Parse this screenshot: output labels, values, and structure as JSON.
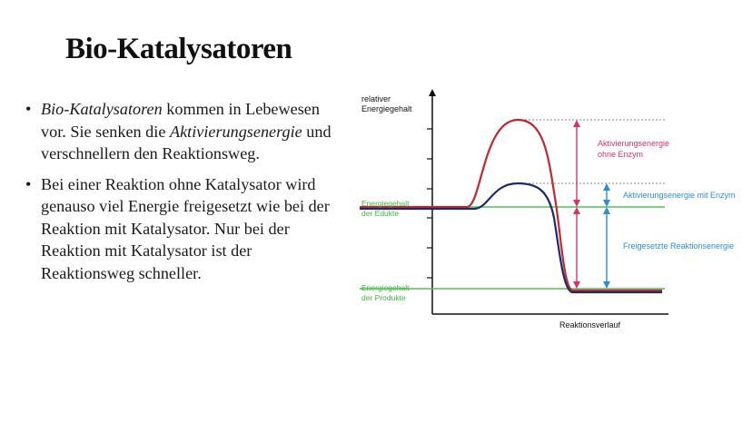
{
  "slide": {
    "title": "Bio-Katalysatoren"
  },
  "bullets": [
    {
      "parts": [
        {
          "text": "Bio-Katalysatoren",
          "italic": true
        },
        {
          "text": " kommen in Lebewesen vor. Sie senken die "
        },
        {
          "text": "Aktivierungsenergie",
          "italic": true
        },
        {
          "text": " und verschnellern den Reaktionsweg."
        }
      ]
    },
    {
      "parts": [
        {
          "text": "Bei einer Reaktion ohne Katalysator wird genauso viel Energie freigesetzt wie bei der Reaktion mit Katalysator. Nur bei der Reaktion mit Katalysator ist der Reaktionsweg schneller."
        }
      ]
    }
  ],
  "diagram": {
    "y_axis_label_line1": "relativer",
    "y_axis_label_line2": "Energiegehalt",
    "x_axis_label": "Reaktionsverlauf",
    "level_educts_line1": "Energiegehalt",
    "level_educts_line2": "der Edukte",
    "level_products_line1": "Energiegehalt",
    "level_products_line2": "der Produkte",
    "ann_activation_without_line1": "Aktivierungsenergie",
    "ann_activation_without_line2": "ohne Enzym",
    "ann_activation_with": "Aktivierungsenergie mit Enzym",
    "ann_released": "Freigesetzte Reaktionsenergie",
    "colors": {
      "without_enzyme": "#c0282f",
      "with_enzyme": "#1c2a6b",
      "levels": "#4cc94c",
      "arrow_without": "#d6336c",
      "arrow_with": "#2a8fd6",
      "axis": "#111111"
    }
  }
}
